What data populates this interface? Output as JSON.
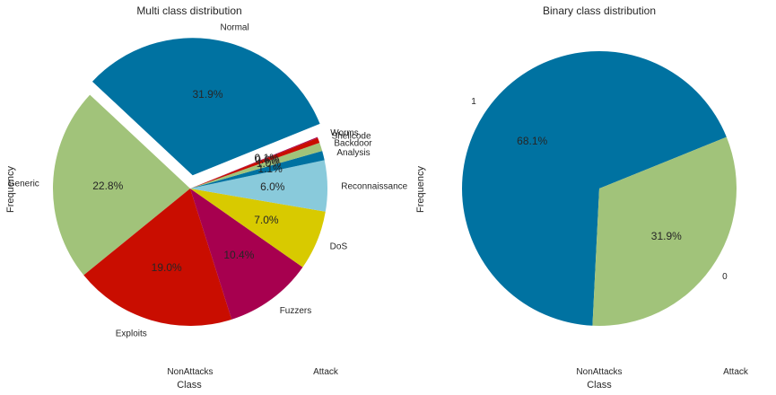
{
  "chart_data": [
    {
      "type": "pie",
      "title": "Multi class distribution",
      "xlabel": "Class",
      "ylabel": "Frequency",
      "xticklabels": [
        "NonAttacks",
        "Attack"
      ],
      "start_angle_deg": 22,
      "exploded": "Normal",
      "slices": [
        {
          "label": "Normal",
          "value": 31.9,
          "pct": "31.9%",
          "color": "#0072a1"
        },
        {
          "label": "Generic",
          "value": 22.8,
          "pct": "22.8%",
          "color": "#a1c37a"
        },
        {
          "label": "Exploits",
          "value": 19.0,
          "pct": "19.0%",
          "color": "#c90d00"
        },
        {
          "label": "Fuzzers",
          "value": 10.4,
          "pct": "10.4%",
          "color": "#a7004f"
        },
        {
          "label": "DoS",
          "value": 7.0,
          "pct": "7.0%",
          "color": "#d8ca00"
        },
        {
          "label": "Reconnaissance",
          "value": 6.0,
          "pct": "6.0%",
          "color": "#89cadb"
        },
        {
          "label": "Analysis",
          "value": 1.1,
          "pct": "1.1%",
          "color": "#0072a1"
        },
        {
          "label": "Backdoor",
          "value": 1.0,
          "pct": "1.0%",
          "color": "#a1c37a"
        },
        {
          "label": "Shellcode",
          "value": 0.6,
          "pct": "0.6%",
          "color": "#c90d00"
        },
        {
          "label": "Worms",
          "value": 0.1,
          "pct": "0.1%",
          "color": "#a7004f"
        }
      ]
    },
    {
      "type": "pie",
      "title": "Binary class distribution",
      "xlabel": "Class",
      "ylabel": "Frequency",
      "xticklabels": [
        "NonAttacks",
        "Attack"
      ],
      "start_angle_deg": 22,
      "slices": [
        {
          "label": "1",
          "value": 68.1,
          "pct": "68.1%",
          "color": "#0072a1"
        },
        {
          "label": "0",
          "value": 31.9,
          "pct": "31.9%",
          "color": "#a1c37a"
        }
      ]
    }
  ]
}
